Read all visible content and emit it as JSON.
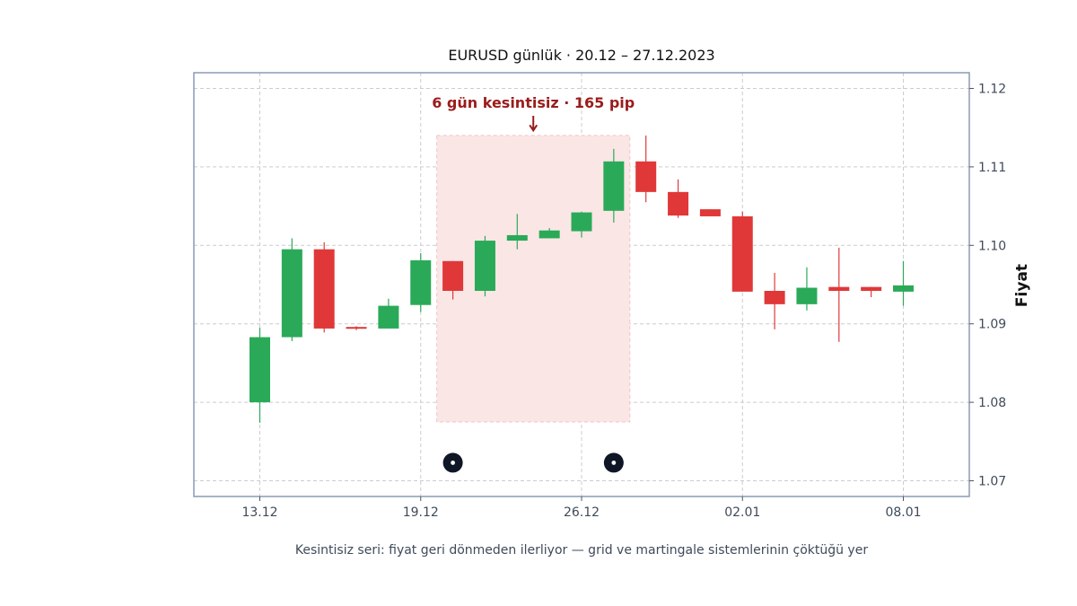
{
  "chart_data": {
    "type": "candlestick",
    "title": "EURUSD günlük · 20.12 – 27.12.2023",
    "ylabel": "Fiyat",
    "xlabel": "",
    "caption": "Kesintisiz seri: fiyat geri dönmeden ilerliyor — grid ve martingale sistemlerinin çöktüğü yer",
    "ylim": [
      1.068,
      1.122
    ],
    "yticks": [
      1.07,
      1.08,
      1.09,
      1.1,
      1.11,
      1.12
    ],
    "xticks": [
      {
        "label": "13.12",
        "index": 0
      },
      {
        "label": "19.12",
        "index": 5
      },
      {
        "label": "26.12",
        "index": 10
      },
      {
        "label": "02.01",
        "index": 15
      },
      {
        "label": "08.01",
        "index": 20
      }
    ],
    "grid": true,
    "colors": {
      "up": "#2aaa58",
      "down": "#e03838",
      "frame": "#8a9ab5",
      "grid": "#cccccc",
      "highlight": "#fbe6e6",
      "annotation": "#9a1c1c",
      "marker": "#0f1626"
    },
    "candles": [
      {
        "open": 1.08,
        "high": 1.0895,
        "low": 1.0774,
        "close": 1.0883
      },
      {
        "open": 1.0883,
        "high": 1.1009,
        "low": 1.0878,
        "close": 1.0995
      },
      {
        "open": 1.0995,
        "high": 1.1004,
        "low": 1.0889,
        "close": 1.0894
      },
      {
        "open": 1.0896,
        "high": 1.0897,
        "low": 1.0892,
        "close": 1.0894
      },
      {
        "open": 1.0894,
        "high": 1.0932,
        "low": 1.0894,
        "close": 1.0923
      },
      {
        "open": 1.0924,
        "high": 1.099,
        "low": 1.0915,
        "close": 1.0981
      },
      {
        "open": 1.098,
        "high": 1.098,
        "low": 1.0931,
        "close": 1.0942
      },
      {
        "open": 1.0942,
        "high": 1.1012,
        "low": 1.0935,
        "close": 1.1006
      },
      {
        "open": 1.1006,
        "high": 1.104,
        "low": 1.0995,
        "close": 1.1013
      },
      {
        "open": 1.1009,
        "high": 1.1022,
        "low": 1.1009,
        "close": 1.1019
      },
      {
        "open": 1.1018,
        "high": 1.1043,
        "low": 1.101,
        "close": 1.1042
      },
      {
        "open": 1.1044,
        "high": 1.1123,
        "low": 1.1029,
        "close": 1.1107
      },
      {
        "open": 1.1107,
        "high": 1.114,
        "low": 1.1055,
        "close": 1.1068
      },
      {
        "open": 1.1068,
        "high": 1.1084,
        "low": 1.1035,
        "close": 1.1038
      },
      {
        "open": 1.1046,
        "high": 1.1046,
        "low": 1.1037,
        "close": 1.1037
      },
      {
        "open": 1.1037,
        "high": 1.1043,
        "low": 1.0941,
        "close": 1.0941
      },
      {
        "open": 1.0942,
        "high": 1.0965,
        "low": 1.0893,
        "close": 1.0925
      },
      {
        "open": 1.0925,
        "high": 1.0972,
        "low": 1.0917,
        "close": 1.0946
      },
      {
        "open": 1.0947,
        "high": 1.0997,
        "low": 1.0877,
        "close": 1.0942
      },
      {
        "open": 1.0947,
        "high": 1.0947,
        "low": 1.0934,
        "close": 1.0942
      },
      {
        "open": 1.0941,
        "high": 1.098,
        "low": 1.0923,
        "close": 1.0949
      }
    ],
    "highlight": {
      "from_index": 5.5,
      "to_index": 11.5,
      "y_low": 1.0775,
      "y_high": 1.114
    },
    "annotation": {
      "text": "6 gün kesintisiz · 165 pip",
      "target_index": 8.5,
      "target_y": 1.1143
    },
    "markers": [
      {
        "index": 6,
        "y": 1.0723
      },
      {
        "index": 11,
        "y": 1.0723
      }
    ]
  }
}
